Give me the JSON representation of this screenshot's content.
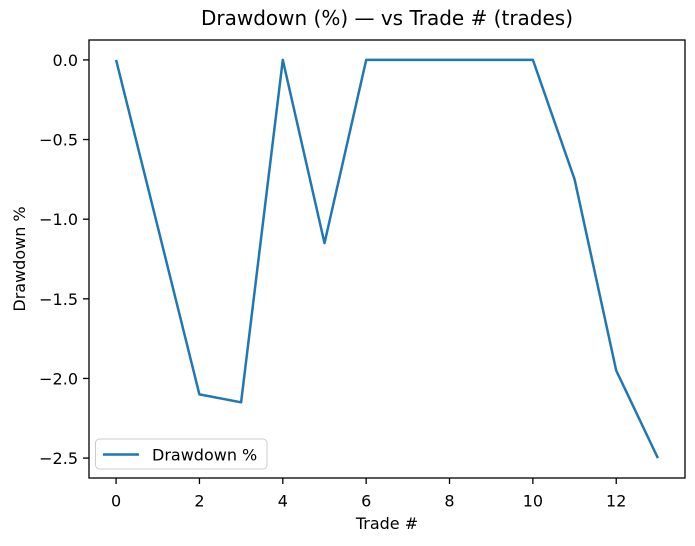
{
  "chart_data": {
    "type": "line",
    "title": "Drawdown (%) — vs Trade # (trades)",
    "xlabel": "Trade #",
    "ylabel": "Drawdown %",
    "x": [
      0,
      1,
      2,
      3,
      4,
      5,
      6,
      7,
      8,
      9,
      10,
      11,
      12,
      13
    ],
    "series": [
      {
        "name": "Drawdown %",
        "color": "#1f77b4",
        "values": [
          0.0,
          -1.05,
          -2.1,
          -2.15,
          0.0,
          -1.15,
          0.0,
          0.0,
          0.0,
          0.0,
          0.0,
          -0.75,
          -1.95,
          -2.5
        ]
      }
    ],
    "xlim": [
      -0.65,
      13.65
    ],
    "ylim": [
      -2.625,
      0.125
    ],
    "xticks": [
      0,
      2,
      4,
      6,
      8,
      10,
      12
    ],
    "xtick_labels": [
      "0",
      "2",
      "4",
      "6",
      "8",
      "10",
      "12"
    ],
    "yticks": [
      0.0,
      -0.5,
      -1.0,
      -1.5,
      -2.0,
      -2.5
    ],
    "ytick_labels": [
      "0.0",
      "−0.5",
      "−1.0",
      "−1.5",
      "−2.0",
      "−2.5"
    ],
    "grid": false,
    "legend": {
      "location": "lower left",
      "entries": [
        {
          "label": "Drawdown %",
          "color": "#1f77b4"
        }
      ]
    },
    "colors": {
      "line": "#1f77b4",
      "background": "#ffffff",
      "text": "#000000",
      "spine": "#000000",
      "legend_border": "#cccccc"
    }
  }
}
